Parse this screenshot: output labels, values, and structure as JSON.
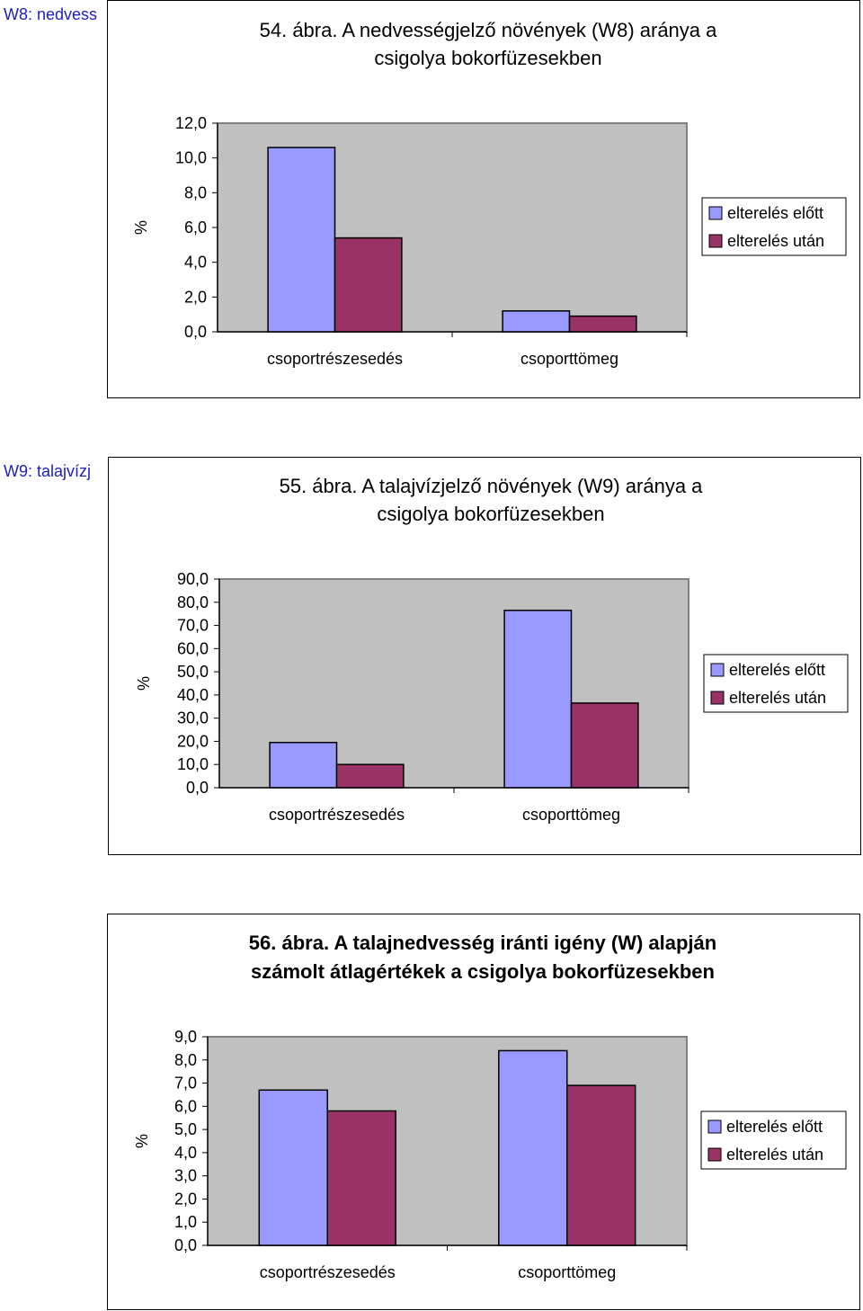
{
  "side_labels": {
    "w8": "W8: nedvess",
    "w9": "W9: talajvízj"
  },
  "colors": {
    "before": "#9999FF",
    "after": "#993366",
    "plot_bg": "#C0C0C0"
  },
  "chart_data": [
    {
      "type": "bar",
      "title": "54. ábra. A nedvességjelző növények (W8) aránya a csigolya bokorfüzesekben",
      "title_lines": [
        "54. ábra. A nedvességjelző növények (W8) aránya a",
        "csigolya bokorfüzesekben"
      ],
      "categories": [
        "csoportrészesedés",
        "csoporttömeg"
      ],
      "series": [
        {
          "name": "elterelés előtt",
          "values": [
            10.6,
            1.2
          ]
        },
        {
          "name": "elterelés után",
          "values": [
            5.4,
            0.9
          ]
        }
      ],
      "ylabel": "%",
      "ylim": [
        0,
        12
      ],
      "yticks": [
        0,
        2,
        4,
        6,
        8,
        10,
        12
      ],
      "ytick_labels": [
        "0,0",
        "2,0",
        "4,0",
        "6,0",
        "8,0",
        "10,0",
        "12,0"
      ],
      "legend": "right",
      "grid": false
    },
    {
      "type": "bar",
      "title": "55. ábra. A talajvízjelző növények (W9) aránya a csigolya bokorfüzesekben",
      "title_lines": [
        "55. ábra. A talajvízjelző növények (W9) aránya a",
        "csigolya bokorfüzesekben"
      ],
      "categories": [
        "csoportrészesedés",
        "csoporttömeg"
      ],
      "series": [
        {
          "name": "elterelés előtt",
          "values": [
            19.5,
            76.5
          ]
        },
        {
          "name": "elterelés után",
          "values": [
            10.0,
            36.5
          ]
        }
      ],
      "ylabel": "%",
      "ylim": [
        0,
        90
      ],
      "yticks": [
        0,
        10,
        20,
        30,
        40,
        50,
        60,
        70,
        80,
        90
      ],
      "ytick_labels": [
        "0,0",
        "10,0",
        "20,0",
        "30,0",
        "40,0",
        "50,0",
        "60,0",
        "70,0",
        "80,0",
        "90,0"
      ],
      "legend": "right",
      "grid": false
    },
    {
      "type": "bar",
      "title": "56. ábra. A talajnedvesség iránti igény (W) alapján számolt átlagértékek a csigolya bokorfüzesekben",
      "title_lines": [
        "56. ábra. A talajnedvesség iránti igény (W) alapján",
        "számolt átlagértékek a csigolya bokorfüzesekben"
      ],
      "categories": [
        "csoportrészesedés",
        "csoporttömeg"
      ],
      "series": [
        {
          "name": "elterelés előtt",
          "values": [
            6.7,
            8.4
          ]
        },
        {
          "name": "elterelés után",
          "values": [
            5.8,
            6.9
          ]
        }
      ],
      "ylabel": "%",
      "ylim": [
        0,
        9
      ],
      "yticks": [
        0,
        1,
        2,
        3,
        4,
        5,
        6,
        7,
        8,
        9
      ],
      "ytick_labels": [
        "0,0",
        "1,0",
        "2,0",
        "3,0",
        "4,0",
        "5,0",
        "6,0",
        "7,0",
        "8,0",
        "9,0"
      ],
      "legend": "right",
      "grid": false
    }
  ]
}
